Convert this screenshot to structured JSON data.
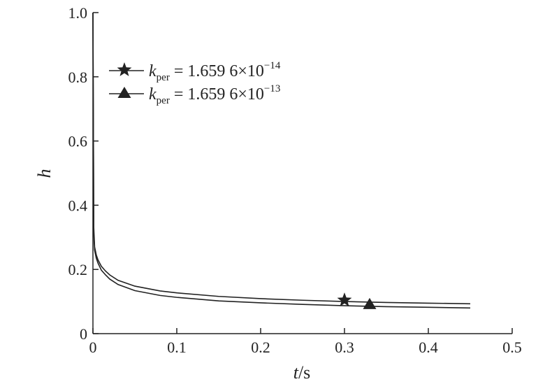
{
  "chart_data": {
    "type": "line",
    "xlabel_var": "t",
    "xlabel_unit": "/s",
    "ylabel": "h",
    "xlim": [
      0,
      0.5
    ],
    "ylim": [
      0,
      1.0
    ],
    "x_ticks": [
      "0",
      "0.1",
      "0.2",
      "0.3",
      "0.4",
      "0.5"
    ],
    "y_ticks": [
      "0",
      "0.2",
      "0.4",
      "0.6",
      "0.8",
      "1.0"
    ],
    "grid": false,
    "legend_position": "top-left",
    "series": [
      {
        "marker": "star",
        "legend": {
          "k": "k",
          "sub": "per",
          "base": " = 1.659 6×10",
          "exp": "−14"
        },
        "color": "#222222",
        "marker_x": 0.3,
        "x": [
          0,
          0.001,
          0.002,
          0.004,
          0.006,
          0.01,
          0.015,
          0.02,
          0.03,
          0.05,
          0.08,
          0.1,
          0.15,
          0.2,
          0.25,
          0.3,
          0.35,
          0.4,
          0.45
        ],
        "y": [
          1.0,
          0.33,
          0.27,
          0.245,
          0.23,
          0.21,
          0.195,
          0.183,
          0.166,
          0.148,
          0.133,
          0.127,
          0.116,
          0.109,
          0.104,
          0.1,
          0.097,
          0.095,
          0.093
        ]
      },
      {
        "marker": "triangle",
        "legend": {
          "k": "k",
          "sub": "per",
          "base": " = 1.659 6×10",
          "exp": "−13"
        },
        "color": "#222222",
        "marker_x": 0.33,
        "x": [
          0,
          0.001,
          0.002,
          0.004,
          0.006,
          0.01,
          0.015,
          0.02,
          0.03,
          0.05,
          0.08,
          0.1,
          0.15,
          0.2,
          0.25,
          0.3,
          0.35,
          0.4,
          0.45
        ],
        "y": [
          1.0,
          0.31,
          0.26,
          0.235,
          0.22,
          0.198,
          0.183,
          0.17,
          0.153,
          0.134,
          0.119,
          0.113,
          0.102,
          0.096,
          0.091,
          0.087,
          0.084,
          0.082,
          0.08
        ]
      }
    ]
  }
}
